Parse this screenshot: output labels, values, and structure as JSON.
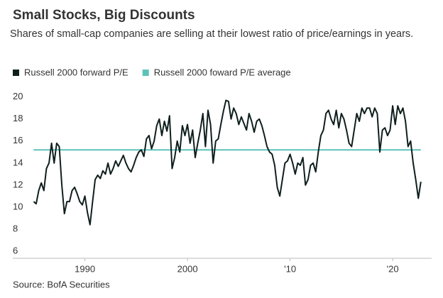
{
  "chart_data": {
    "type": "line",
    "title": "Small Stocks, Big Discounts",
    "subtitle": "Shares of small-cap companies are selling at their lowest ratio of price/earnings in years.",
    "source": "Source: BofA Securities",
    "x": [
      1985,
      1985.25,
      1985.5,
      1985.75,
      1986,
      1986.25,
      1986.5,
      1986.75,
      1987,
      1987.25,
      1987.5,
      1987.75,
      1988,
      1988.25,
      1988.5,
      1988.75,
      1989,
      1989.25,
      1989.5,
      1989.75,
      1990,
      1990.25,
      1990.5,
      1990.75,
      1991,
      1991.25,
      1991.5,
      1991.75,
      1992,
      1992.25,
      1992.5,
      1992.75,
      1993,
      1993.25,
      1993.5,
      1993.75,
      1994,
      1994.25,
      1994.5,
      1994.75,
      1995,
      1995.25,
      1995.5,
      1995.75,
      1996,
      1996.25,
      1996.5,
      1996.75,
      1997,
      1997.25,
      1997.5,
      1997.75,
      1998,
      1998.25,
      1998.5,
      1998.75,
      1999,
      1999.25,
      1999.5,
      1999.75,
      2000,
      2000.25,
      2000.5,
      2000.75,
      2001,
      2001.25,
      2001.5,
      2001.75,
      2002,
      2002.25,
      2002.5,
      2002.75,
      2003,
      2003.25,
      2003.5,
      2003.75,
      2004,
      2004.25,
      2004.5,
      2004.75,
      2005,
      2005.25,
      2005.5,
      2005.75,
      2006,
      2006.25,
      2006.5,
      2006.75,
      2007,
      2007.25,
      2007.5,
      2007.75,
      2008,
      2008.25,
      2008.5,
      2008.75,
      2009,
      2009.25,
      2009.5,
      2009.75,
      2010,
      2010.25,
      2010.5,
      2010.75,
      2011,
      2011.25,
      2011.5,
      2011.75,
      2012,
      2012.25,
      2012.5,
      2012.75,
      2013,
      2013.25,
      2013.5,
      2013.75,
      2014,
      2014.25,
      2014.5,
      2014.75,
      2015,
      2015.25,
      2015.5,
      2015.75,
      2016,
      2016.25,
      2016.5,
      2016.75,
      2017,
      2017.25,
      2017.5,
      2017.75,
      2018,
      2018.25,
      2018.5,
      2018.75,
      2019,
      2019.25,
      2019.5,
      2019.75,
      2020,
      2020.25,
      2020.5,
      2020.75,
      2021,
      2021.25,
      2021.5,
      2021.75,
      2022,
      2022.25,
      2022.5,
      2022.75
    ],
    "series": [
      {
        "name": "Russell 2000 forward P/E",
        "color": "#0f1f1e",
        "values": [
          10.5,
          10.3,
          11.5,
          12.2,
          11.5,
          13.5,
          14.0,
          15.8,
          14.0,
          15.8,
          15.5,
          12.0,
          9.4,
          10.5,
          10.5,
          11.5,
          11.8,
          11.2,
          10.5,
          10.2,
          11.0,
          9.5,
          8.4,
          10.5,
          12.5,
          12.9,
          12.6,
          13.3,
          13.0,
          14.0,
          13.0,
          13.5,
          14.2,
          13.7,
          14.2,
          14.7,
          14.0,
          13.5,
          13.2,
          13.8,
          14.5,
          15.0,
          15.2,
          14.6,
          16.2,
          16.5,
          15.3,
          16.0,
          17.4,
          18.0,
          16.5,
          17.8,
          16.9,
          18.3,
          13.5,
          14.5,
          16.0,
          15.0,
          17.4,
          16.5,
          17.5,
          15.8,
          17.0,
          14.5,
          15.8,
          17.0,
          18.5,
          15.5,
          18.8,
          17.5,
          14.0,
          16.0,
          16.2,
          17.5,
          18.7,
          19.7,
          19.6,
          18.0,
          19.0,
          18.5,
          17.5,
          18.2,
          17.6,
          17.0,
          18.5,
          17.8,
          16.8,
          17.8,
          18.0,
          17.4,
          16.5,
          15.5,
          15.0,
          14.8,
          13.8,
          11.8,
          11.0,
          12.5,
          14.0,
          14.2,
          14.8,
          14.0,
          13.0,
          14.0,
          13.8,
          14.5,
          12.0,
          12.5,
          13.8,
          14.0,
          13.2,
          15.0,
          16.5,
          17.0,
          18.5,
          18.8,
          18.0,
          17.5,
          18.8,
          17.2,
          18.5,
          18.0,
          17.0,
          15.8,
          15.5,
          17.0,
          18.5,
          17.8,
          19.0,
          18.5,
          19.0,
          19.0,
          18.2,
          19.0,
          18.5,
          15.0,
          17.0,
          17.2,
          16.5,
          17.0,
          19.2,
          17.5,
          19.2,
          18.5,
          19.0,
          17.8,
          15.5,
          16.0,
          14.0,
          12.5,
          10.8,
          12.3
        ]
      }
    ],
    "reference_line": {
      "name": "Russell 2000 foward P/E average",
      "color": "#5cc3b9",
      "value": 15.2
    },
    "xlim": [
      1983.8,
      2023.8
    ],
    "xticks": [
      1990,
      2000,
      {
        "value": 2010,
        "label": "'10"
      },
      {
        "value": 2020,
        "label": "'20"
      }
    ],
    "ylim": [
      5.35,
      20.5
    ],
    "yticks": [
      6,
      8,
      10,
      12,
      14,
      16,
      18,
      20
    ],
    "grid": false
  }
}
